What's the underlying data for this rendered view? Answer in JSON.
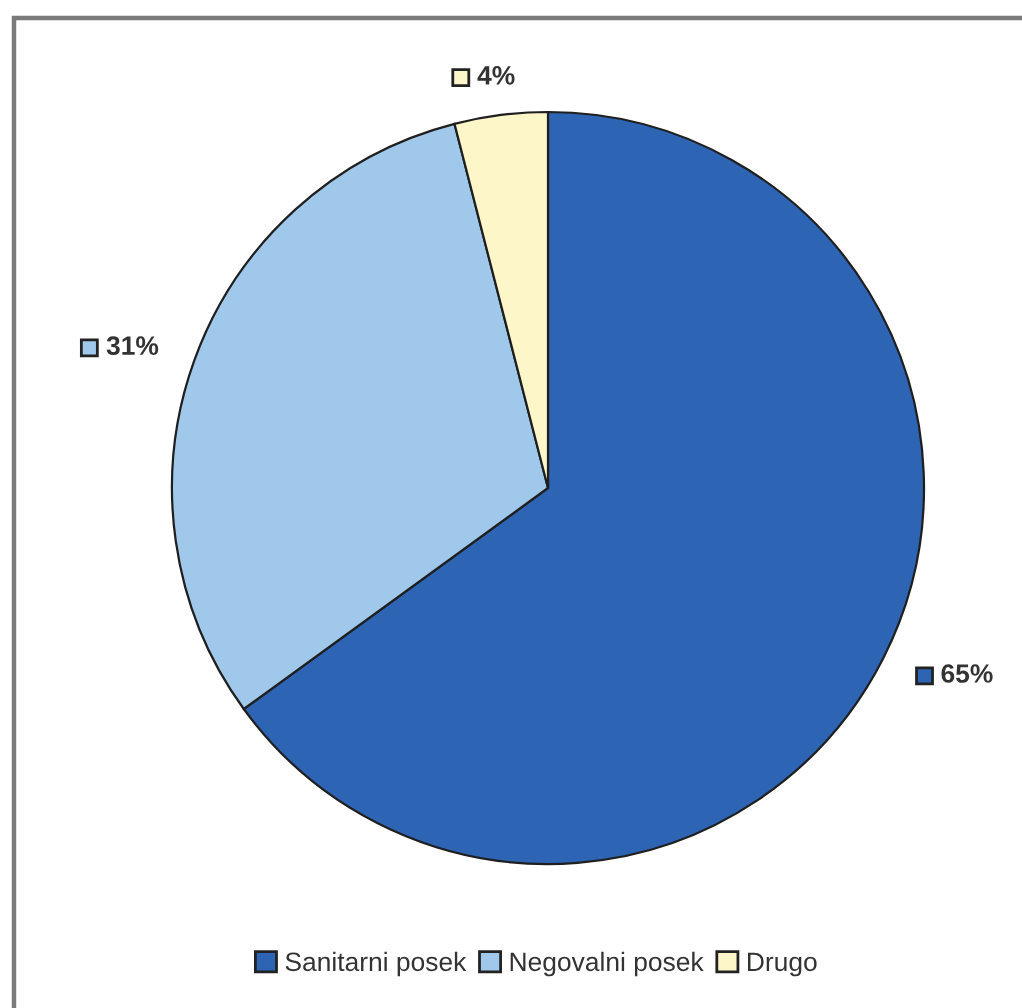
{
  "chart_data": {
    "type": "pie",
    "categories": [
      "Sanitarni posek",
      "Negovalni posek",
      "Drugo"
    ],
    "values": [
      65,
      31,
      4
    ],
    "colors": [
      "#2e64b4",
      "#9fc8ea",
      "#fdf6c9"
    ],
    "value_labels": [
      "65%",
      "31%",
      "4%"
    ],
    "legend": "bottom"
  }
}
